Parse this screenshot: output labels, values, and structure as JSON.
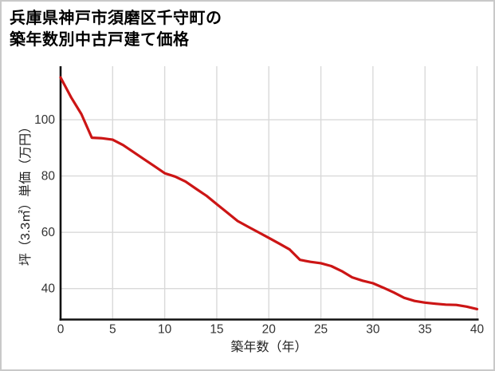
{
  "title": {
    "line1": "兵庫県神戸市須磨区千守町の",
    "line2": "築年数別中古戸建て価格"
  },
  "axes": {
    "x": {
      "label": "築年数（年）",
      "ticks": [
        0,
        5,
        10,
        15,
        20,
        25,
        30,
        35,
        40
      ],
      "range": [
        0,
        40
      ]
    },
    "y": {
      "label": "坪（3.3㎡）単価（万円）",
      "ticks": [
        40,
        60,
        80,
        100
      ],
      "range": [
        29,
        119
      ]
    }
  },
  "colors": {
    "line": "#cc1515",
    "grid": "#d9d9d9",
    "axis": "#111111",
    "tick_text": "#333333"
  },
  "chart_data": {
    "type": "line",
    "title": "兵庫県神戸市須磨区千守町の築年数別中古戸建て価格",
    "xlabel": "築年数（年）",
    "ylabel": "坪（3.3㎡）単価（万円）",
    "xlim": [
      0,
      40
    ],
    "ylim": [
      29,
      119
    ],
    "grid": true,
    "legend_position": "none",
    "x": [
      0,
      1,
      2,
      3,
      4,
      5,
      6,
      7,
      8,
      9,
      10,
      11,
      12,
      13,
      14,
      15,
      16,
      17,
      18,
      19,
      20,
      21,
      22,
      23,
      24,
      25,
      26,
      27,
      28,
      29,
      30,
      31,
      32,
      33,
      34,
      35,
      36,
      37,
      38,
      39,
      40
    ],
    "values": [
      115,
      108,
      102,
      93.6,
      93.4,
      92.9,
      91,
      88.5,
      86,
      83.5,
      81,
      79.8,
      78,
      75.5,
      73,
      70,
      67,
      64,
      62,
      60,
      58,
      56,
      53.9,
      50.2,
      49.5,
      49,
      48,
      46.2,
      44,
      42.8,
      41.9,
      40.3,
      38.6,
      36.7,
      35.6,
      35,
      34.6,
      34.3,
      34.2,
      33.6,
      32.7
    ]
  }
}
